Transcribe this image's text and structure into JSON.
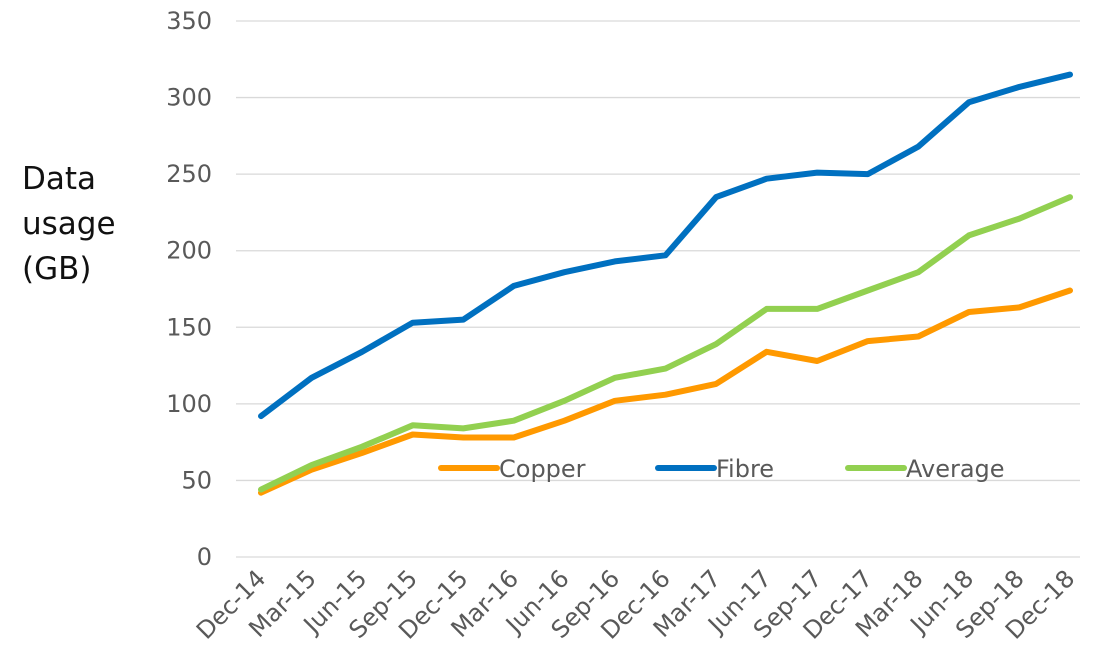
{
  "chart_data": {
    "type": "line",
    "ylabel_lines": [
      "Data",
      "usage",
      "(GB)"
    ],
    "categories": [
      "Dec-14",
      "Mar-15",
      "Jun-15",
      "Sep-15",
      "Dec-15",
      "Mar-16",
      "Jun-16",
      "Sep-16",
      "Dec-16",
      "Mar-17",
      "Jun-17",
      "Sep-17",
      "Dec-17",
      "Mar-18",
      "Jun-18",
      "Sep-18",
      "Dec-18"
    ],
    "ylim": [
      0,
      350
    ],
    "yticks": [
      0,
      50,
      100,
      150,
      200,
      250,
      300,
      350
    ],
    "grid": true,
    "legend_position": "inside-center",
    "series": [
      {
        "name": "Copper",
        "color": "#ff9900",
        "values": [
          42,
          57,
          68,
          80,
          78,
          78,
          89,
          102,
          106,
          113,
          134,
          128,
          141,
          144,
          160,
          163,
          174
        ]
      },
      {
        "name": "Fibre",
        "color": "#0070c0",
        "values": [
          92,
          117,
          134,
          153,
          155,
          177,
          186,
          193,
          197,
          235,
          247,
          251,
          250,
          268,
          297,
          307,
          315
        ]
      },
      {
        "name": "Average",
        "color": "#92d050",
        "values": [
          44,
          60,
          72,
          86,
          84,
          89,
          102,
          117,
          123,
          139,
          162,
          162,
          174,
          186,
          210,
          221,
          235
        ]
      }
    ]
  }
}
